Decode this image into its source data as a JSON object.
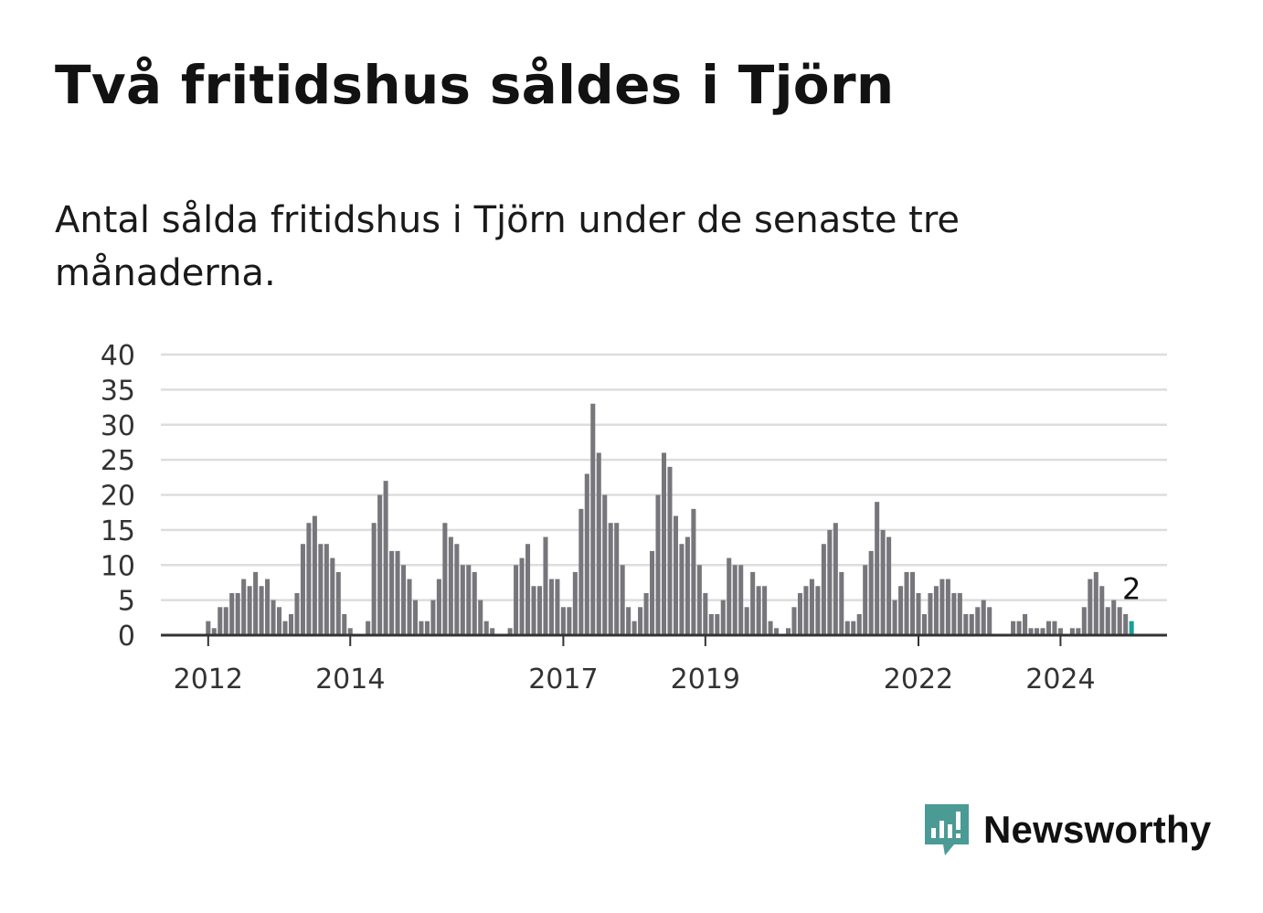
{
  "header": {
    "title": "Två fritidshus såldes i Tjörn",
    "subtitle": "Antal sålda fritidshus i Tjörn under de senaste tre månaderna."
  },
  "brand": {
    "name": "Newsworthy",
    "color": "#4a9b94",
    "icon": "newsworthy-logo-icon"
  },
  "colors": {
    "bar": "#77767b",
    "highlight": "#1a9e98",
    "grid": "#dddddd",
    "axis": "#333333"
  },
  "chart_data": {
    "type": "bar",
    "title": "",
    "xlabel": "",
    "ylabel": "",
    "ylim": [
      0,
      40
    ],
    "yticks": [
      0,
      5,
      10,
      15,
      20,
      25,
      30,
      35,
      40
    ],
    "grid": true,
    "x_start": "2011-05",
    "x_end": "2025-07",
    "x_tick_labels": [
      "2012",
      "2014",
      "2017",
      "2019",
      "2022",
      "2024"
    ],
    "x_tick_dates": [
      "2012-01",
      "2014-01",
      "2017-01",
      "2019-01",
      "2022-01",
      "2024-01"
    ],
    "series": [
      {
        "start": "2012-01",
        "values": [
          2,
          1,
          4,
          4,
          6,
          6,
          8,
          7,
          9,
          7,
          8,
          5,
          4,
          2,
          3,
          6,
          13,
          16,
          17,
          13,
          13,
          11,
          9,
          3,
          1,
          0,
          0,
          2,
          16,
          20,
          22,
          12,
          12,
          10,
          8,
          5,
          2,
          2,
          5,
          8,
          16,
          14,
          13,
          10,
          10,
          9,
          5,
          2,
          1,
          0,
          0,
          1,
          10,
          11,
          13,
          7,
          7,
          14,
          8,
          8,
          4,
          4,
          9,
          18,
          23,
          33,
          26,
          20,
          16,
          16,
          10,
          4,
          2,
          4,
          6,
          12,
          20,
          26,
          24,
          17,
          13,
          14,
          18,
          10,
          6,
          3,
          3,
          5,
          11,
          10,
          10,
          4,
          9,
          7,
          7,
          2,
          1,
          0,
          1,
          4,
          6,
          7,
          8,
          7,
          13,
          15,
          16,
          9,
          2,
          2,
          3,
          10,
          12,
          19,
          15,
          14,
          5,
          7,
          9,
          9,
          6,
          3,
          6,
          7,
          8,
          8,
          6,
          6,
          3,
          3,
          4,
          5,
          4,
          0,
          0,
          0,
          2,
          2,
          3,
          1,
          1,
          1,
          2,
          2,
          1,
          0,
          1,
          1,
          4,
          8,
          9,
          7,
          4,
          5,
          4,
          3,
          2
        ]
      }
    ],
    "highlight": {
      "date": "2025-01",
      "value": 2,
      "label": "2"
    }
  }
}
